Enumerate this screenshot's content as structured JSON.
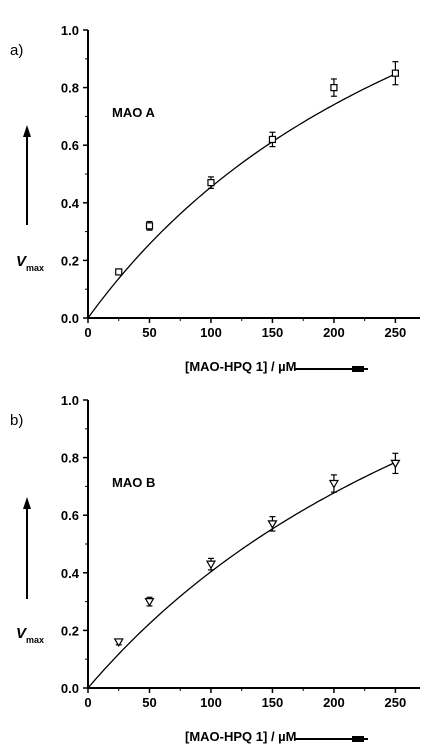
{
  "chart_data": [
    {
      "type": "scatter",
      "panel_label": "a)",
      "enzyme_label": "MAO A",
      "xlabel": "[MAO-HPQ 1] / µM",
      "ylabel_main": "V",
      "ylabel_sub": "max",
      "xlim": [
        0,
        270
      ],
      "ylim": [
        0,
        1.0
      ],
      "xticks": [
        0,
        50,
        100,
        150,
        200,
        250
      ],
      "yticks": [
        "0.0",
        "0.2",
        "0.4",
        "0.6",
        "0.8",
        "1.0"
      ],
      "marker": "square",
      "series": [
        {
          "x": [
            25,
            50,
            100,
            150,
            200,
            250
          ],
          "y": [
            0.16,
            0.32,
            0.47,
            0.62,
            0.8,
            0.85
          ],
          "err": [
            0.01,
            0.015,
            0.02,
            0.025,
            0.03,
            0.04
          ]
        }
      ],
      "fit": {
        "vmax": 2.0,
        "km": 340
      }
    },
    {
      "type": "scatter",
      "panel_label": "b)",
      "enzyme_label": "MAO B",
      "xlabel": "[MAO-HPQ 1] / µM",
      "ylabel_main": "V",
      "ylabel_sub": "max",
      "xlim": [
        0,
        270
      ],
      "ylim": [
        0,
        1.0
      ],
      "xticks": [
        0,
        50,
        100,
        150,
        200,
        250
      ],
      "yticks": [
        "0.0",
        "0.2",
        "0.4",
        "0.6",
        "0.8",
        "1.0"
      ],
      "marker": "triangle-down",
      "series": [
        {
          "x": [
            25,
            50,
            100,
            150,
            200,
            250
          ],
          "y": [
            0.16,
            0.3,
            0.43,
            0.57,
            0.71,
            0.78
          ],
          "err": [
            0.01,
            0.015,
            0.02,
            0.025,
            0.03,
            0.035
          ]
        }
      ],
      "fit": {
        "vmax": 2.1,
        "km": 420
      }
    }
  ]
}
